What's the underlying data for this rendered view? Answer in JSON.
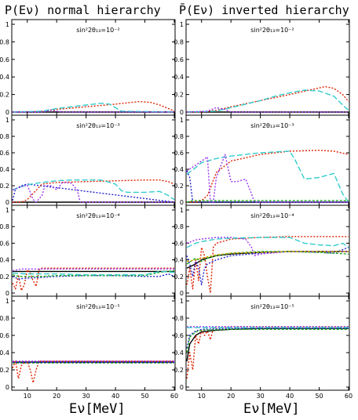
{
  "titles": {
    "left": "P(Eν)  normal hierarchy",
    "right": "P̄(Eν) inverted hierarchy"
  },
  "xlabel": "Eν[MeV]",
  "chart_data": {
    "type": "line",
    "xlim": [
      5,
      60
    ],
    "ylim": [
      0,
      1
    ],
    "x_ticks": [
      10,
      20,
      30,
      40,
      50,
      60
    ],
    "y_ticks": [
      "0",
      "0.2",
      "0.4",
      "0.6",
      "0.8",
      "1"
    ],
    "colors": {
      "black": "#000000",
      "red": "#dd2200",
      "cyan": "#33cccc",
      "purple": "#9933ee",
      "blue": "#2222cc",
      "green": "#22aa22",
      "yellow": "#ccaa00"
    },
    "panels": [
      {
        "id": "normal-1e-2",
        "label": "sin²2θ₁₃=10⁻²",
        "series": [
          {
            "color": "black",
            "x": [
              5,
              60
            ],
            "y": [
              0.0,
              0.0
            ]
          },
          {
            "color": "red",
            "x": [
              5,
              10,
              15,
              20,
              30,
              40,
              48,
              52,
              55,
              58,
              60
            ],
            "y": [
              0.0,
              0.0,
              0.01,
              0.03,
              0.06,
              0.09,
              0.12,
              0.11,
              0.08,
              0.04,
              0.01
            ]
          },
          {
            "color": "cyan",
            "x": [
              5,
              15,
              20,
              25,
              30,
              35,
              38,
              40,
              42,
              60
            ],
            "y": [
              0.0,
              0.01,
              0.04,
              0.06,
              0.08,
              0.1,
              0.09,
              0.05,
              0.01,
              0.0
            ]
          },
          {
            "color": "purple",
            "x": [
              5,
              15,
              18,
              20,
              22,
              60
            ],
            "y": [
              0.0,
              0.0,
              0.02,
              0.01,
              0.0,
              0.0
            ]
          }
        ]
      },
      {
        "id": "inverted-1e-2",
        "label": "sin²2θ₁₃=10⁻²",
        "series": [
          {
            "color": "black",
            "x": [
              5,
              60
            ],
            "y": [
              0.0,
              0.0
            ]
          },
          {
            "color": "red",
            "x": [
              5,
              10,
              15,
              20,
              30,
              40,
              48,
              52,
              55,
              58,
              60
            ],
            "y": [
              0.0,
              0.0,
              0.02,
              0.06,
              0.13,
              0.2,
              0.26,
              0.29,
              0.27,
              0.2,
              0.12
            ]
          },
          {
            "color": "cyan",
            "x": [
              5,
              15,
              20,
              25,
              30,
              35,
              40,
              45,
              50,
              55,
              58,
              60
            ],
            "y": [
              0.0,
              0.01,
              0.05,
              0.09,
              0.13,
              0.18,
              0.22,
              0.25,
              0.24,
              0.18,
              0.08,
              0.02
            ]
          },
          {
            "color": "purple",
            "x": [
              5,
              12,
              15,
              18,
              20,
              60
            ],
            "y": [
              0.0,
              0.01,
              0.05,
              0.03,
              0.0,
              0.0
            ]
          }
        ]
      },
      {
        "id": "normal-1e-3",
        "label": "sin²2θ₁₃=10⁻³",
        "series": [
          {
            "color": "black",
            "x": [
              5,
              60
            ],
            "y": [
              0.0,
              0.0
            ]
          },
          {
            "color": "blue",
            "x": [
              5,
              6,
              8,
              10,
              60
            ],
            "y": [
              0.02,
              0.16,
              0.2,
              0.22,
              0.0
            ]
          },
          {
            "color": "red",
            "x": [
              5,
              8,
              10,
              15,
              20,
              30,
              40,
              50,
              55,
              58,
              60
            ],
            "y": [
              0.0,
              0.0,
              0.03,
              0.22,
              0.24,
              0.25,
              0.26,
              0.27,
              0.27,
              0.25,
              0.22
            ]
          },
          {
            "color": "cyan",
            "x": [
              5,
              8,
              10,
              15,
              20,
              25,
              30,
              35,
              40,
              42,
              44,
              50,
              55,
              58,
              60
            ],
            "y": [
              0.15,
              0.19,
              0.21,
              0.24,
              0.26,
              0.27,
              0.27,
              0.27,
              0.22,
              0.14,
              0.12,
              0.12,
              0.13,
              0.08,
              0.03
            ]
          },
          {
            "color": "purple",
            "x": [
              5,
              10,
              12,
              13,
              15,
              16,
              18,
              20,
              22,
              25,
              27,
              28,
              30,
              60
            ],
            "y": [
              0.15,
              0.21,
              0.03,
              0.0,
              0.08,
              0.2,
              0.2,
              0.15,
              0.24,
              0.23,
              0.15,
              0.0,
              0.0,
              0.0
            ]
          }
        ]
      },
      {
        "id": "inverted-1e-3",
        "label": "sin²2θ₁₃=10⁻³",
        "series": [
          {
            "color": "black",
            "x": [
              5,
              60
            ],
            "y": [
              0.0,
              0.0
            ]
          },
          {
            "color": "blue",
            "x": [
              5,
              6,
              7,
              8,
              9,
              60
            ],
            "y": [
              0.38,
              0.3,
              0.0,
              0.0,
              0.0,
              0.0
            ]
          },
          {
            "color": "red",
            "x": [
              5,
              8,
              10,
              12,
              15,
              20,
              30,
              40,
              50,
              55,
              60
            ],
            "y": [
              0.0,
              0.0,
              0.02,
              0.08,
              0.36,
              0.5,
              0.58,
              0.62,
              0.63,
              0.62,
              0.58
            ]
          },
          {
            "color": "cyan",
            "x": [
              5,
              8,
              10,
              15,
              20,
              30,
              40,
              42,
              45,
              50,
              55,
              58,
              60
            ],
            "y": [
              0.34,
              0.42,
              0.48,
              0.53,
              0.56,
              0.6,
              0.62,
              0.5,
              0.28,
              0.3,
              0.35,
              0.1,
              0.0
            ]
          },
          {
            "color": "purple",
            "x": [
              5,
              8,
              10,
              12,
              13,
              14,
              15,
              18,
              20,
              22,
              25,
              27,
              28,
              60
            ],
            "y": [
              0.38,
              0.45,
              0.5,
              0.55,
              0.0,
              0.0,
              0.3,
              0.58,
              0.25,
              0.25,
              0.28,
              0.1,
              0.0,
              0.0
            ]
          },
          {
            "color": "green",
            "x": [
              5,
              7,
              60
            ],
            "y": [
              0.0,
              0.02,
              0.02
            ]
          }
        ]
      },
      {
        "id": "normal-1e-4",
        "label": "sin²2θ₁₃=10⁻⁴",
        "series": [
          {
            "color": "black",
            "x": [
              5,
              60
            ],
            "y": [
              0.26,
              0.26
            ]
          },
          {
            "color": "red",
            "x": [
              5,
              6,
              7,
              8,
              9,
              10,
              11,
              12,
              13,
              14,
              15,
              20,
              30,
              40,
              50,
              60
            ],
            "y": [
              0.12,
              0.05,
              0.22,
              0.03,
              0.1,
              0.28,
              0.24,
              0.15,
              0.08,
              0.28,
              0.3,
              0.3,
              0.3,
              0.3,
              0.3,
              0.3
            ]
          },
          {
            "color": "blue",
            "x": [
              5,
              7,
              10,
              15,
              20,
              30,
              40,
              50,
              55,
              58,
              60
            ],
            "y": [
              0.2,
              0.17,
              0.18,
              0.19,
              0.2,
              0.21,
              0.21,
              0.2,
              0.2,
              0.23,
              0.2
            ]
          },
          {
            "color": "purple",
            "x": [
              5,
              8,
              10,
              20,
              30,
              40,
              50,
              60
            ],
            "y": [
              0.27,
              0.29,
              0.29,
              0.29,
              0.29,
              0.29,
              0.29,
              0.29
            ]
          },
          {
            "color": "green",
            "x": [
              5,
              7,
              10,
              15,
              20,
              30,
              40,
              50,
              55,
              60
            ],
            "y": [
              0.22,
              0.2,
              0.2,
              0.2,
              0.21,
              0.21,
              0.21,
              0.21,
              0.25,
              0.27
            ]
          },
          {
            "color": "cyan",
            "x": [
              5,
              10,
              20,
              30,
              40,
              50,
              55,
              60
            ],
            "y": [
              0.24,
              0.23,
              0.23,
              0.22,
              0.22,
              0.22,
              0.26,
              0.25
            ]
          }
        ]
      },
      {
        "id": "inverted-1e-4",
        "label": "sin²2θ₁₃=10⁻⁴",
        "series": [
          {
            "color": "black",
            "x": [
              5,
              8,
              10,
              15,
              20,
              30,
              40,
              50,
              60
            ],
            "y": [
              0.3,
              0.35,
              0.4,
              0.45,
              0.47,
              0.49,
              0.5,
              0.5,
              0.5
            ]
          },
          {
            "color": "red",
            "x": [
              5,
              6,
              7,
              8,
              9,
              10,
              11,
              12,
              13,
              14,
              15,
              20,
              30,
              40,
              50,
              60
            ],
            "y": [
              0.1,
              0.3,
              0.05,
              0.4,
              0.15,
              0.55,
              0.45,
              0.2,
              0.0,
              0.55,
              0.6,
              0.65,
              0.67,
              0.68,
              0.68,
              0.68
            ]
          },
          {
            "color": "blue",
            "x": [
              5,
              6,
              7,
              8,
              9,
              10,
              11,
              12,
              15,
              20,
              30,
              40,
              50,
              55,
              60
            ],
            "y": [
              0.45,
              0.35,
              0.2,
              0.4,
              0.3,
              0.1,
              0.3,
              0.35,
              0.4,
              0.45,
              0.48,
              0.5,
              0.49,
              0.48,
              0.55
            ]
          },
          {
            "color": "purple",
            "x": [
              5,
              8,
              10,
              15,
              20,
              25,
              27,
              28,
              30,
              40,
              50,
              60
            ],
            "y": [
              0.6,
              0.64,
              0.65,
              0.67,
              0.67,
              0.65,
              0.55,
              0.45,
              0.47,
              0.5,
              0.5,
              0.5
            ]
          },
          {
            "color": "green",
            "x": [
              5,
              8,
              10,
              12,
              15,
              20,
              30,
              40,
              50,
              60
            ],
            "y": [
              0.35,
              0.42,
              0.38,
              0.42,
              0.45,
              0.48,
              0.5,
              0.5,
              0.49,
              0.47
            ]
          },
          {
            "color": "cyan",
            "x": [
              5,
              8,
              10,
              15,
              20,
              30,
              40,
              45,
              50,
              55,
              58,
              60
            ],
            "y": [
              0.55,
              0.6,
              0.62,
              0.65,
              0.66,
              0.67,
              0.67,
              0.6,
              0.58,
              0.57,
              0.6,
              0.55
            ]
          },
          {
            "color": "yellow",
            "x": [
              5,
              8,
              10,
              15,
              20,
              30,
              40,
              50,
              60
            ],
            "y": [
              0.38,
              0.4,
              0.42,
              0.46,
              0.48,
              0.49,
              0.5,
              0.5,
              0.5
            ]
          }
        ]
      },
      {
        "id": "normal-1e-5",
        "label": "sin²2θ₁₃=10⁻⁵",
        "series": [
          {
            "color": "black",
            "x": [
              5,
              60
            ],
            "y": [
              0.29,
              0.29
            ]
          },
          {
            "color": "red",
            "x": [
              5,
              6,
              7,
              8,
              9,
              10,
              11,
              12,
              13,
              14,
              15,
              20,
              60
            ],
            "y": [
              0.22,
              0.3,
              0.1,
              0.25,
              0.28,
              0.3,
              0.2,
              0.05,
              0.2,
              0.3,
              0.3,
              0.3,
              0.3
            ]
          },
          {
            "color": "green",
            "x": [
              5,
              60
            ],
            "y": [
              0.28,
              0.28
            ]
          },
          {
            "color": "purple",
            "x": [
              5,
              60
            ],
            "y": [
              0.3,
              0.3
            ]
          },
          {
            "color": "blue",
            "x": [
              5,
              60
            ],
            "y": [
              0.285,
              0.285
            ]
          }
        ]
      },
      {
        "id": "inverted-1e-5",
        "label": "sin²2θ₁₃=10⁻⁵",
        "series": [
          {
            "color": "black",
            "x": [
              5,
              6,
              8,
              10,
              15,
              20,
              30,
              60
            ],
            "y": [
              0.3,
              0.5,
              0.6,
              0.64,
              0.66,
              0.67,
              0.68,
              0.68
            ]
          },
          {
            "color": "red",
            "x": [
              5,
              6,
              7,
              8,
              9,
              10,
              11,
              12,
              13,
              14,
              15,
              20,
              60
            ],
            "y": [
              0.1,
              0.4,
              0.2,
              0.6,
              0.5,
              0.66,
              0.6,
              0.65,
              0.55,
              0.68,
              0.69,
              0.7,
              0.7
            ]
          },
          {
            "color": "purple",
            "x": [
              5,
              60
            ],
            "y": [
              0.7,
              0.7
            ]
          },
          {
            "color": "blue",
            "x": [
              5,
              6,
              8,
              10,
              20,
              60
            ],
            "y": [
              0.45,
              0.6,
              0.65,
              0.67,
              0.68,
              0.68
            ]
          },
          {
            "color": "green",
            "x": [
              5,
              6,
              8,
              10,
              20,
              60
            ],
            "y": [
              0.4,
              0.58,
              0.64,
              0.66,
              0.67,
              0.67
            ]
          },
          {
            "color": "cyan",
            "x": [
              5,
              60
            ],
            "y": [
              0.69,
              0.69
            ]
          }
        ]
      }
    ]
  }
}
